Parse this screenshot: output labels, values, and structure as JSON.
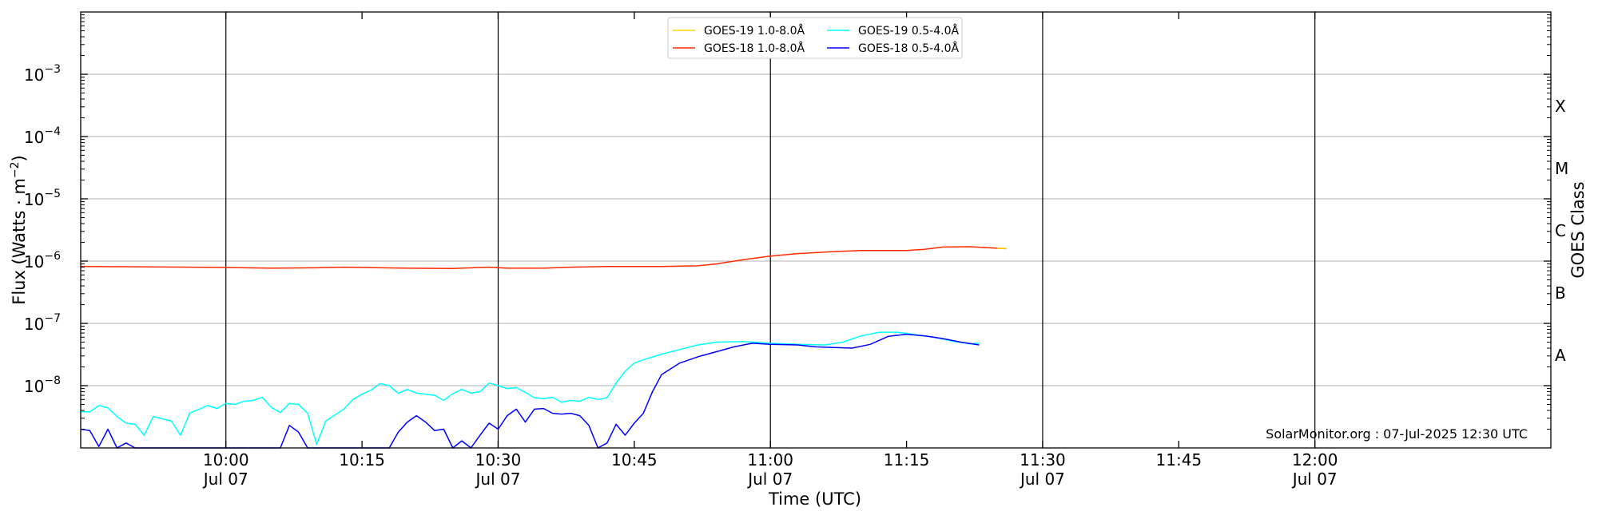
{
  "chart_data": {
    "type": "line",
    "xlabel": "Time (UTC)",
    "ylabel": "Flux (Watts · m",
    "ylabel_sup": "−2",
    "ylabel_close": ")",
    "right_label": "GOES Class",
    "credit": "SolarMonitor.org : 07-Jul-2025 12:30 UTC",
    "y_log_scale": true,
    "ylim": [
      1e-09,
      0.01
    ],
    "xlim": [
      "09:44",
      "12:26"
    ],
    "grid": "horizontal",
    "legend_placement": "top-center",
    "x_ticks": [
      {
        "time": "10:00",
        "label": "10:00",
        "date": "Jul 07"
      },
      {
        "time": "10:15",
        "label": "10:15",
        "date": ""
      },
      {
        "time": "10:30",
        "label": "10:30",
        "date": "Jul 07"
      },
      {
        "time": "10:45",
        "label": "10:45",
        "date": ""
      },
      {
        "time": "11:00",
        "label": "11:00",
        "date": "Jul 07"
      },
      {
        "time": "11:15",
        "label": "11:15",
        "date": ""
      },
      {
        "time": "11:30",
        "label": "11:30",
        "date": "Jul 07"
      },
      {
        "time": "11:45",
        "label": "11:45",
        "date": ""
      },
      {
        "time": "12:00",
        "label": "12:00",
        "date": "Jul 07"
      }
    ],
    "vertical_lines": [
      "10:00",
      "10:30",
      "11:00",
      "11:30",
      "12:00"
    ],
    "y_ticks": [
      {
        "value": 1e-08,
        "base": "10",
        "exp": "−8"
      },
      {
        "value": 1e-07,
        "base": "10",
        "exp": "−7"
      },
      {
        "value": 1e-06,
        "base": "10",
        "exp": "−6"
      },
      {
        "value": 1e-05,
        "base": "10",
        "exp": "−5"
      },
      {
        "value": 0.0001,
        "base": "10",
        "exp": "−4"
      },
      {
        "value": 0.001,
        "base": "10",
        "exp": "−3"
      }
    ],
    "goes_classes": [
      {
        "label": "A",
        "value": 3.16e-08
      },
      {
        "label": "B",
        "value": 3.16e-07
      },
      {
        "label": "C",
        "value": 3.16e-06
      },
      {
        "label": "M",
        "value": 3.16e-05
      },
      {
        "label": "X",
        "value": 0.000316
      }
    ],
    "series": [
      {
        "name": "GOES-19 1.0-8.0Å",
        "color": "#ffd700",
        "points": [
          [
            "11:25",
            1.6e-06
          ],
          [
            "11:26",
            1.6e-06
          ]
        ]
      },
      {
        "name": "GOES-18 1.0-8.0Å",
        "color": "#ff2a00",
        "points": [
          [
            "09:44",
            8.2e-07
          ],
          [
            "09:50",
            8.1e-07
          ],
          [
            "10:00",
            7.9e-07
          ],
          [
            "10:05",
            7.7e-07
          ],
          [
            "10:10",
            7.8e-07
          ],
          [
            "10:13",
            8e-07
          ],
          [
            "10:20",
            7.7e-07
          ],
          [
            "10:25",
            7.6e-07
          ],
          [
            "10:29",
            8e-07
          ],
          [
            "10:31",
            7.7e-07
          ],
          [
            "10:35",
            7.7e-07
          ],
          [
            "10:38",
            8e-07
          ],
          [
            "10:42",
            8.2e-07
          ],
          [
            "10:48",
            8.2e-07
          ],
          [
            "10:52",
            8.4e-07
          ],
          [
            "10:54",
            9e-07
          ],
          [
            "10:57",
            1.05e-06
          ],
          [
            "11:00",
            1.2e-06
          ],
          [
            "11:03",
            1.32e-06
          ],
          [
            "11:07",
            1.42e-06
          ],
          [
            "11:10",
            1.48e-06
          ],
          [
            "11:15",
            1.48e-06
          ],
          [
            "11:17",
            1.55e-06
          ],
          [
            "11:19",
            1.68e-06
          ],
          [
            "11:22",
            1.7e-06
          ],
          [
            "11:26",
            1.58e-06
          ]
        ]
      },
      {
        "name": "GOES-19 0.5-4.0Å",
        "color": "#00ffff",
        "points": [
          [
            "09:44",
            3.8e-09
          ],
          [
            "09:45",
            3.8e-09
          ],
          [
            "09:46",
            4.8e-09
          ],
          [
            "09:47",
            4.4e-09
          ],
          [
            "09:48",
            3.2e-09
          ],
          [
            "09:49",
            2.5e-09
          ],
          [
            "09:50",
            2.4e-09
          ],
          [
            "09:51",
            1.6e-09
          ],
          [
            "09:52",
            3.2e-09
          ],
          [
            "09:54",
            2.7e-09
          ],
          [
            "09:55",
            1.6e-09
          ],
          [
            "09:56",
            3.6e-09
          ],
          [
            "09:58",
            4.8e-09
          ],
          [
            "09:59",
            4.3e-09
          ],
          [
            "10:00",
            5.2e-09
          ],
          [
            "10:01",
            5e-09
          ],
          [
            "10:02",
            5.6e-09
          ],
          [
            "10:03",
            5.8e-09
          ],
          [
            "10:04",
            6.5e-09
          ],
          [
            "10:05",
            4.5e-09
          ],
          [
            "10:06",
            3.7e-09
          ],
          [
            "10:07",
            5.2e-09
          ],
          [
            "10:08",
            5e-09
          ],
          [
            "10:09",
            3.6e-09
          ],
          [
            "10:10",
            1.15e-09
          ],
          [
            "10:11",
            2.7e-09
          ],
          [
            "10:13",
            4.2e-09
          ],
          [
            "10:14",
            6e-09
          ],
          [
            "10:15",
            7.3e-09
          ],
          [
            "10:16",
            8.5e-09
          ],
          [
            "10:17",
            1.08e-08
          ],
          [
            "10:18",
            1e-08
          ],
          [
            "10:19",
            7.5e-09
          ],
          [
            "10:20",
            8.7e-09
          ],
          [
            "10:21",
            7.6e-09
          ],
          [
            "10:23",
            7e-09
          ],
          [
            "10:24",
            5.8e-09
          ],
          [
            "10:25",
            7.4e-09
          ],
          [
            "10:26",
            8.7e-09
          ],
          [
            "10:27",
            7.6e-09
          ],
          [
            "10:28",
            8e-09
          ],
          [
            "10:29",
            1.1e-08
          ],
          [
            "10:30",
            1e-08
          ],
          [
            "10:31",
            9e-09
          ],
          [
            "10:32",
            9.3e-09
          ],
          [
            "10:33",
            7.8e-09
          ],
          [
            "10:34",
            6.4e-09
          ],
          [
            "10:35",
            6.2e-09
          ],
          [
            "10:36",
            6.5e-09
          ],
          [
            "10:37",
            5.4e-09
          ],
          [
            "10:38",
            5.8e-09
          ],
          [
            "10:39",
            5.6e-09
          ],
          [
            "10:40",
            6.5e-09
          ],
          [
            "10:41",
            6e-09
          ],
          [
            "10:42",
            6.4e-09
          ],
          [
            "10:43",
            1.1e-08
          ],
          [
            "10:44",
            1.7e-08
          ],
          [
            "10:45",
            2.3e-08
          ],
          [
            "10:46",
            2.6e-08
          ],
          [
            "10:48",
            3.2e-08
          ],
          [
            "10:50",
            3.8e-08
          ],
          [
            "10:52",
            4.5e-08
          ],
          [
            "10:54",
            5e-08
          ],
          [
            "10:57",
            5.1e-08
          ],
          [
            "11:00",
            4.8e-08
          ],
          [
            "11:03",
            4.6e-08
          ],
          [
            "11:06",
            4.5e-08
          ],
          [
            "11:08",
            5e-08
          ],
          [
            "11:10",
            6.3e-08
          ],
          [
            "11:12",
            7.2e-08
          ],
          [
            "11:14",
            7.2e-08
          ],
          [
            "11:16",
            6.6e-08
          ],
          [
            "11:18",
            6e-08
          ],
          [
            "11:20",
            5.2e-08
          ],
          [
            "11:22",
            4.7e-08
          ],
          [
            "11:23",
            4.8e-08
          ]
        ]
      },
      {
        "name": "GOES-18 0.5-4.0Å",
        "color": "#0000ff",
        "points": [
          [
            "09:44",
            2e-09
          ],
          [
            "09:45",
            1.9e-09
          ],
          [
            "09:46",
            1.05e-09
          ],
          [
            "09:47",
            2e-09
          ],
          [
            "09:48",
            1e-09
          ],
          [
            "09:49",
            1.2e-09
          ],
          [
            "09:50",
            1e-09
          ],
          [
            "10:06",
            1e-09
          ],
          [
            "10:07",
            2.3e-09
          ],
          [
            "10:08",
            1.8e-09
          ],
          [
            "10:09",
            1e-09
          ],
          [
            "10:18",
            1e-09
          ],
          [
            "10:19",
            1.8e-09
          ],
          [
            "10:20",
            2.6e-09
          ],
          [
            "10:21",
            3.3e-09
          ],
          [
            "10:22",
            2.6e-09
          ],
          [
            "10:23",
            1.9e-09
          ],
          [
            "10:24",
            2e-09
          ],
          [
            "10:25",
            1e-09
          ],
          [
            "10:26",
            1.3e-09
          ],
          [
            "10:27",
            1e-09
          ],
          [
            "10:28",
            1.6e-09
          ],
          [
            "10:29",
            2.5e-09
          ],
          [
            "10:30",
            2e-09
          ],
          [
            "10:31",
            3.3e-09
          ],
          [
            "10:32",
            4.2e-09
          ],
          [
            "10:33",
            2.6e-09
          ],
          [
            "10:34",
            4.2e-09
          ],
          [
            "10:35",
            4.3e-09
          ],
          [
            "10:36",
            3.6e-09
          ],
          [
            "10:37",
            3.5e-09
          ],
          [
            "10:38",
            3.6e-09
          ],
          [
            "10:39",
            3.3e-09
          ],
          [
            "10:40",
            2.3e-09
          ],
          [
            "10:41",
            1e-09
          ],
          [
            "10:42",
            1.2e-09
          ],
          [
            "10:43",
            2.4e-09
          ],
          [
            "10:44",
            1.6e-09
          ],
          [
            "10:45",
            2.5e-09
          ],
          [
            "10:46",
            3.6e-09
          ],
          [
            "10:47",
            8e-09
          ],
          [
            "10:48",
            1.5e-08
          ],
          [
            "10:50",
            2.3e-08
          ],
          [
            "10:52",
            2.9e-08
          ],
          [
            "10:54",
            3.5e-08
          ],
          [
            "10:56",
            4.2e-08
          ],
          [
            "10:58",
            4.8e-08
          ],
          [
            "11:00",
            4.6e-08
          ],
          [
            "11:03",
            4.5e-08
          ],
          [
            "11:05",
            4.2e-08
          ],
          [
            "11:07",
            4.1e-08
          ],
          [
            "11:09",
            4e-08
          ],
          [
            "11:11",
            4.6e-08
          ],
          [
            "11:13",
            6.2e-08
          ],
          [
            "11:15",
            6.7e-08
          ],
          [
            "11:17",
            6.3e-08
          ],
          [
            "11:19",
            5.7e-08
          ],
          [
            "11:21",
            5e-08
          ],
          [
            "11:23",
            4.5e-08
          ]
        ]
      }
    ]
  }
}
